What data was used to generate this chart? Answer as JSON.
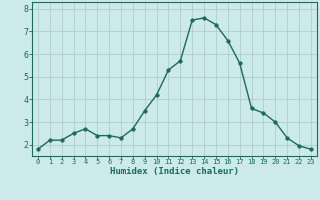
{
  "x": [
    0,
    1,
    2,
    3,
    4,
    5,
    6,
    7,
    8,
    9,
    10,
    11,
    12,
    13,
    14,
    15,
    16,
    17,
    18,
    19,
    20,
    21,
    22,
    23
  ],
  "y": [
    1.8,
    2.2,
    2.2,
    2.5,
    2.7,
    2.4,
    2.4,
    2.3,
    2.7,
    3.5,
    4.2,
    5.3,
    5.7,
    7.5,
    7.6,
    7.3,
    6.6,
    5.6,
    3.6,
    3.4,
    3.0,
    2.3,
    1.95,
    1.8
  ],
  "line_color": "#1a6b5a",
  "marker_color": "#1a6b5a",
  "bg_color": "#cce9eb",
  "grid_major_color": "#b0ccce",
  "grid_minor_color": "#c2dcde",
  "xlabel": "Humidex (Indice chaleur)",
  "xlim": [
    -0.5,
    23.5
  ],
  "ylim": [
    1.5,
    8.3
  ],
  "yticks": [
    2,
    3,
    4,
    5,
    6,
    7,
    8
  ],
  "xticks": [
    0,
    1,
    2,
    3,
    4,
    5,
    6,
    7,
    8,
    9,
    10,
    11,
    12,
    13,
    14,
    15,
    16,
    17,
    18,
    19,
    20,
    21,
    22,
    23
  ],
  "marker_size": 2.5,
  "line_width": 1.0,
  "tick_fontsize": 5.0,
  "xlabel_fontsize": 6.5
}
